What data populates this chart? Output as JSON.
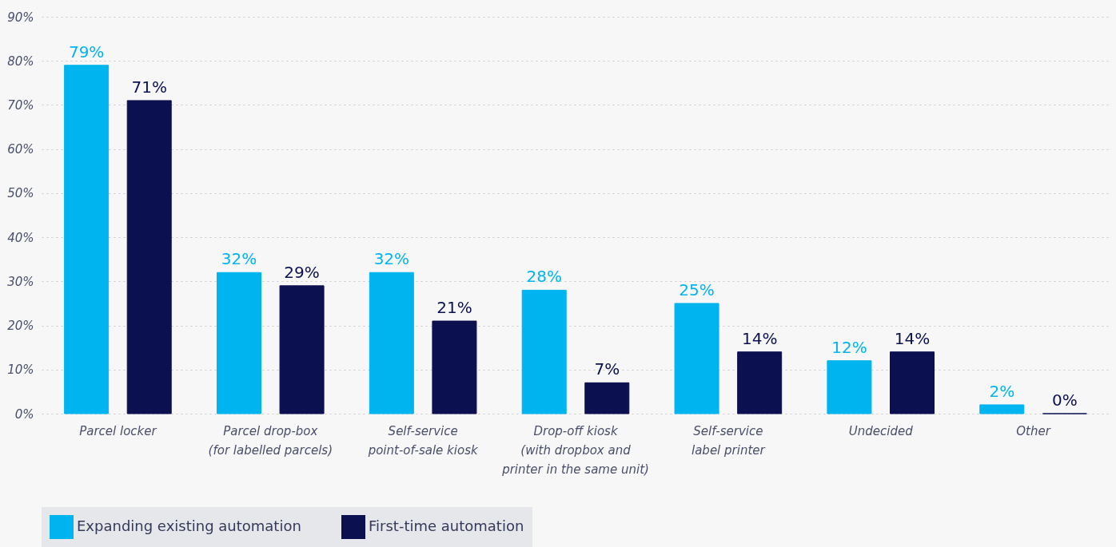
{
  "chart_data": {
    "type": "bar",
    "categories": [
      "Parcel locker",
      "Parcel drop-box\n(for labelled parcels)",
      "Self-service\npoint-of-sale kiosk",
      "Drop-off kiosk\n(with dropbox and\nprinter in the same unit)",
      "Self-service\nlabel printer",
      "Undecided",
      "Other"
    ],
    "series": [
      {
        "name": "Expanding existing automation",
        "color": "#00b5ef",
        "values": [
          79,
          32,
          32,
          28,
          25,
          12,
          2
        ],
        "value_labels": [
          "79%",
          "32%",
          "32%",
          "28%",
          "25%",
          "12%",
          "2%"
        ]
      },
      {
        "name": "First-time automation",
        "color": "#0b1150",
        "values": [
          71,
          29,
          21,
          7,
          14,
          14,
          0
        ],
        "value_labels": [
          "71%",
          "29%",
          "21%",
          "7%",
          "14%",
          "14%",
          "0%"
        ]
      }
    ],
    "ylim": [
      0,
      90
    ],
    "yticks": [
      {
        "value": 0,
        "label": "0%"
      },
      {
        "value": 10,
        "label": "10%"
      },
      {
        "value": 20,
        "label": "20%"
      },
      {
        "value": 30,
        "label": "30%"
      },
      {
        "value": 40,
        "label": "40%"
      },
      {
        "value": 50,
        "label": "50%"
      },
      {
        "value": 60,
        "label": "60%"
      },
      {
        "value": 70,
        "label": "70%"
      },
      {
        "value": 80,
        "label": "80%"
      },
      {
        "value": 90,
        "label": "90%"
      }
    ],
    "grid": "y",
    "legend": "bottom"
  }
}
